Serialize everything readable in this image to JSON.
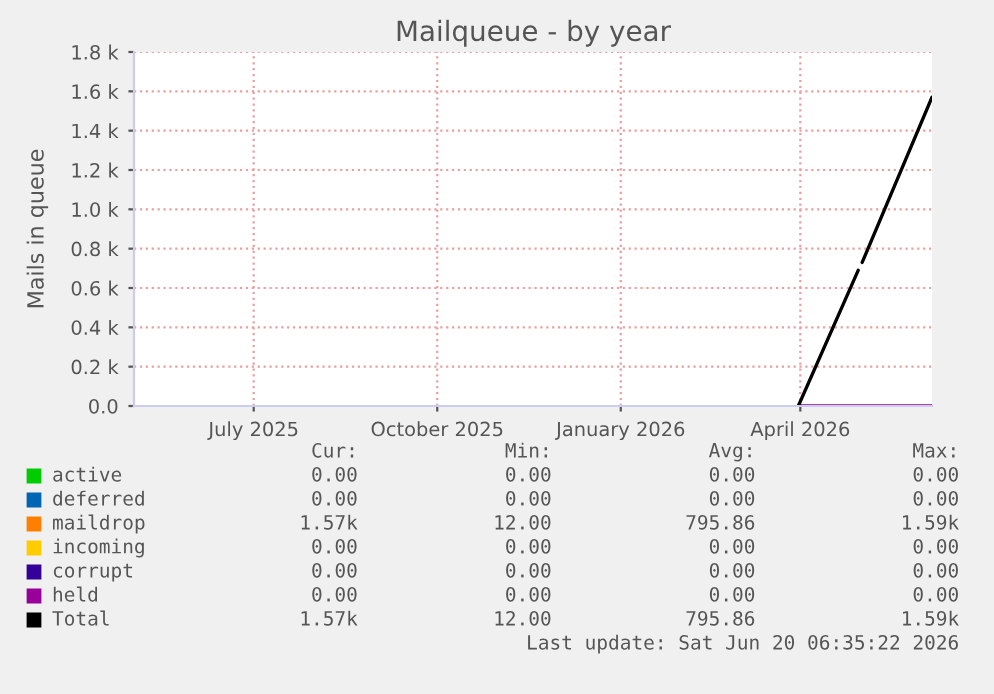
{
  "chart_data": {
    "type": "line",
    "title": "Mailqueue - by year",
    "ylabel": "Mails in queue",
    "xlim": [
      "2025-05-16",
      "2026-06-20"
    ],
    "xticks": [
      {
        "value": "2025-07-15",
        "label": "July 2025"
      },
      {
        "value": "2025-10-15",
        "label": "October 2025"
      },
      {
        "value": "2026-01-15",
        "label": "January 2026"
      },
      {
        "value": "2026-04-15",
        "label": "April 2026"
      }
    ],
    "ylim": [
      0,
      1800
    ],
    "yticks": [
      {
        "value": 0,
        "label": "0.0"
      },
      {
        "value": 200,
        "label": "0.2 k"
      },
      {
        "value": 400,
        "label": "0.4 k"
      },
      {
        "value": 600,
        "label": "0.6 k"
      },
      {
        "value": 800,
        "label": "0.8 k"
      },
      {
        "value": 1000,
        "label": "1.0 k"
      },
      {
        "value": 1200,
        "label": "1.2 k"
      },
      {
        "value": 1400,
        "label": "1.4 k"
      },
      {
        "value": 1600,
        "label": "1.6 k"
      },
      {
        "value": 1800,
        "label": "1.8 k"
      }
    ],
    "grid": true,
    "legend": "bottom",
    "marker": "none",
    "line_style": "solid",
    "series": [
      {
        "name": "active",
        "color": "#00cc00"
      },
      {
        "name": "deferred",
        "color": "#0066b3"
      },
      {
        "name": "maildrop",
        "color": "#ff8000"
      },
      {
        "name": "incoming",
        "color": "#ffcc00"
      },
      {
        "name": "corrupt",
        "color": "#330099"
      },
      {
        "name": "held",
        "color": "#990099",
        "x": [
          "2026-04-14",
          "2026-06-20"
        ],
        "values": [
          0,
          0
        ]
      },
      {
        "name": "Total",
        "color": "#000000",
        "x": [
          "2026-04-14",
          "2026-05-14",
          "2026-05-15",
          "2026-05-16",
          "2026-06-20"
        ],
        "values": [
          0,
          690,
          null,
          730,
          1570
        ]
      }
    ],
    "annotations": [
      "Cur:",
      "Min:",
      "Avg:",
      "Max:",
      "0.00",
      "0.00",
      "0.00",
      "0.00",
      "0.00",
      "0.00",
      "0.00",
      "0.00",
      "1.57k",
      "12.00",
      "795.86",
      "1.59k",
      "0.00",
      "0.00",
      "0.00",
      "0.00",
      "0.00",
      "0.00",
      "0.00",
      "0.00",
      "0.00",
      "0.00",
      "0.00",
      "0.00",
      "1.57k",
      "12.00",
      "795.86",
      "1.59k",
      "Last update: Sat Jun 20 06:35:22 2026"
    ]
  }
}
